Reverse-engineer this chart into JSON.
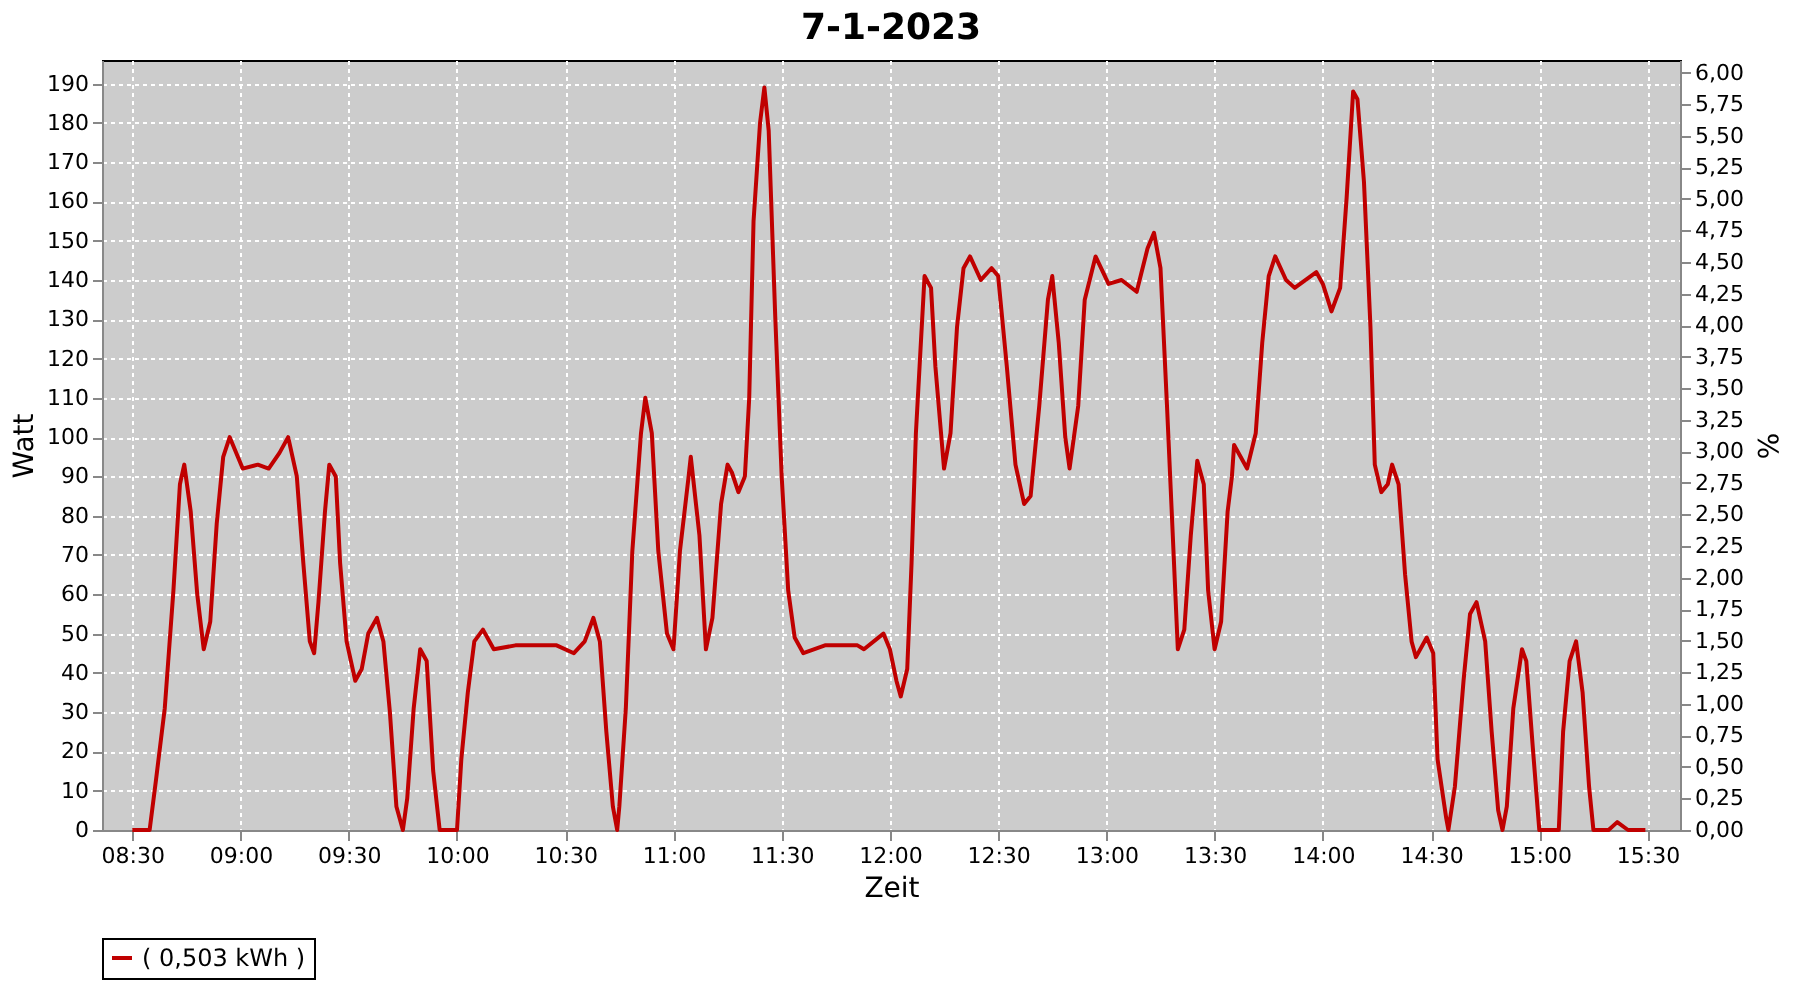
{
  "chart_data": {
    "type": "line",
    "title": "7-1-2023",
    "xlabel": "Zeit",
    "ylabel": "Watt",
    "y2label": "%",
    "xlim": [
      8.36,
      15.65
    ],
    "xticks": [
      {
        "value": 8.5,
        "label": "08:30"
      },
      {
        "value": 9,
        "label": "09:00"
      },
      {
        "value": 9.5,
        "label": "09:30"
      },
      {
        "value": 10,
        "label": "10:00"
      },
      {
        "value": 10.5,
        "label": "10:30"
      },
      {
        "value": 11,
        "label": "11:00"
      },
      {
        "value": 11.5,
        "label": "11:30"
      },
      {
        "value": 12,
        "label": "12:00"
      },
      {
        "value": 12.5,
        "label": "12:30"
      },
      {
        "value": 13,
        "label": "13:00"
      },
      {
        "value": 13.5,
        "label": "13:30"
      },
      {
        "value": 14,
        "label": "14:00"
      },
      {
        "value": 14.5,
        "label": "14:30"
      },
      {
        "value": 15,
        "label": "15:00"
      },
      {
        "value": 15.5,
        "label": "15:30"
      }
    ],
    "ylim": [
      0,
      196
    ],
    "yticks": [
      0,
      10,
      20,
      30,
      40,
      50,
      60,
      70,
      80,
      90,
      100,
      110,
      120,
      130,
      140,
      150,
      160,
      170,
      180,
      190
    ],
    "y2lim": [
      0,
      6.1
    ],
    "y2ticks": [
      {
        "value": 0,
        "label": "0,00"
      },
      {
        "value": 0.25,
        "label": "0,25"
      },
      {
        "value": 0.5,
        "label": "0,50"
      },
      {
        "value": 0.75,
        "label": "0,75"
      },
      {
        "value": 1,
        "label": "1,00"
      },
      {
        "value": 1.25,
        "label": "1,25"
      },
      {
        "value": 1.5,
        "label": "1,50"
      },
      {
        "value": 1.75,
        "label": "1,75"
      },
      {
        "value": 2,
        "label": "2,00"
      },
      {
        "value": 2.25,
        "label": "2,25"
      },
      {
        "value": 2.5,
        "label": "2,50"
      },
      {
        "value": 2.75,
        "label": "2,75"
      },
      {
        "value": 3,
        "label": "3,00"
      },
      {
        "value": 3.25,
        "label": "3,25"
      },
      {
        "value": 3.5,
        "label": "3,50"
      },
      {
        "value": 3.75,
        "label": "3,75"
      },
      {
        "value": 4,
        "label": "4,00"
      },
      {
        "value": 4.25,
        "label": "4,25"
      },
      {
        "value": 4.5,
        "label": "4,50"
      },
      {
        "value": 4.75,
        "label": "4,75"
      },
      {
        "value": 5,
        "label": "5,00"
      },
      {
        "value": 5.25,
        "label": "5,25"
      },
      {
        "value": 5.5,
        "label": "5,50"
      },
      {
        "value": 5.75,
        "label": "5,75"
      },
      {
        "value": 6,
        "label": "6,00"
      }
    ],
    "grid": true,
    "legend": "bottom",
    "series": [
      {
        "name": "( 0,503 kWh )",
        "color": "#c00000",
        "x": [
          8.5,
          8.58,
          8.61,
          8.65,
          8.69,
          8.72,
          8.74,
          8.77,
          8.8,
          8.83,
          8.86,
          8.89,
          8.92,
          8.95,
          9.01,
          9.08,
          9.13,
          9.18,
          9.22,
          9.26,
          9.29,
          9.32,
          9.34,
          9.36,
          9.39,
          9.41,
          9.44,
          9.46,
          9.49,
          9.53,
          9.56,
          9.59,
          9.63,
          9.66,
          9.69,
          9.72,
          9.75,
          9.77,
          9.8,
          9.83,
          9.86,
          9.89,
          9.92,
          10.0,
          10.02,
          10.05,
          10.08,
          10.12,
          10.17,
          10.27,
          10.46,
          10.54,
          10.59,
          10.63,
          10.66,
          10.69,
          10.72,
          10.74,
          10.75,
          10.78,
          10.81,
          10.85,
          10.87,
          10.9,
          10.93,
          10.97,
          11.0,
          11.03,
          11.07,
          11.08,
          11.12,
          11.15,
          11.18,
          11.22,
          11.25,
          11.27,
          11.3,
          11.33,
          11.35,
          11.37,
          11.4,
          11.42,
          11.44,
          11.47,
          11.5,
          11.53,
          11.56,
          11.6,
          11.7,
          11.85,
          11.88,
          11.97,
          12.0,
          12.03,
          12.05,
          12.08,
          12.1,
          12.12,
          12.14,
          12.16,
          12.19,
          12.21,
          12.25,
          12.28,
          12.31,
          12.34,
          12.37,
          12.42,
          12.47,
          12.5,
          12.54,
          12.58,
          12.62,
          12.65,
          12.69,
          12.73,
          12.75,
          12.78,
          12.81,
          12.83,
          12.87,
          12.9,
          12.95,
          13.01,
          13.07,
          13.14,
          13.19,
          13.22,
          13.25,
          13.28,
          13.31,
          13.33,
          13.36,
          13.39,
          13.42,
          13.45,
          13.47,
          13.5,
          13.53,
          13.56,
          13.58,
          13.59,
          13.65,
          13.69,
          13.72,
          13.75,
          13.78,
          13.83,
          13.87,
          13.97,
          14.0,
          14.04,
          14.08,
          14.11,
          14.14,
          14.16,
          14.19,
          14.22,
          14.24,
          14.27,
          14.3,
          14.32,
          14.35,
          14.38,
          14.41,
          14.43,
          14.48,
          14.51,
          14.53,
          14.57,
          14.58,
          14.61,
          14.65,
          14.68,
          14.71,
          14.75,
          14.78,
          14.81,
          14.83,
          14.85,
          14.88,
          14.92,
          14.94,
          14.97,
          15.0,
          15.09,
          15.11,
          15.14,
          15.17,
          15.2,
          15.23,
          15.25,
          15.32,
          15.36,
          15.41,
          15.49
        ],
        "values": [
          0,
          0,
          13,
          31,
          61,
          88,
          93,
          81,
          60,
          46,
          53,
          78,
          95,
          100,
          92,
          93,
          92,
          96,
          100,
          90,
          68,
          48,
          45,
          58,
          81,
          93,
          90,
          68,
          48,
          38,
          41,
          50,
          54,
          48,
          30,
          6,
          0,
          8,
          31,
          46,
          43,
          15,
          0,
          0,
          18,
          35,
          48,
          51,
          46,
          47,
          47,
          45,
          48,
          54,
          48,
          25,
          6,
          0,
          6,
          31,
          71,
          101,
          110,
          101,
          71,
          50,
          46,
          71,
          90,
          95,
          75,
          46,
          54,
          83,
          93,
          91,
          86,
          90,
          110,
          155,
          180,
          189,
          178,
          131,
          90,
          61,
          49,
          45,
          47,
          47,
          46,
          50,
          46,
          38,
          34,
          41,
          68,
          101,
          121,
          141,
          138,
          118,
          92,
          101,
          128,
          143,
          146,
          140,
          143,
          141,
          118,
          93,
          83,
          85,
          108,
          135,
          141,
          124,
          100,
          92,
          108,
          135,
          146,
          139,
          140,
          137,
          148,
          152,
          143,
          108,
          71,
          46,
          51,
          75,
          94,
          88,
          61,
          46,
          53,
          81,
          90,
          98,
          92,
          101,
          124,
          141,
          146,
          140,
          138,
          142,
          139,
          132,
          138,
          161,
          188,
          186,
          165,
          128,
          93,
          86,
          88,
          93,
          88,
          65,
          48,
          44,
          49,
          45,
          18,
          3,
          0,
          11,
          38,
          55,
          58,
          48,
          25,
          5,
          0,
          6,
          31,
          46,
          43,
          21,
          0,
          0,
          25,
          43,
          48,
          35,
          11,
          0,
          0,
          2,
          0,
          0
        ]
      }
    ]
  }
}
